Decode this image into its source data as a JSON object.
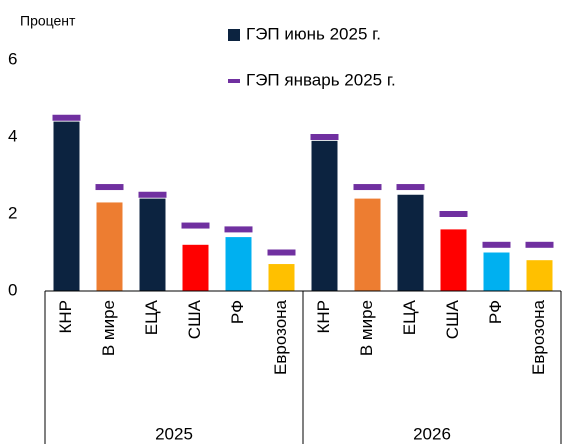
{
  "chart_data": {
    "type": "bar",
    "y_label": "Процент",
    "categories": [
      "КНР",
      "В мире",
      "ЕЦА",
      "США",
      "РФ",
      "Еврозона",
      "КНР",
      "В мире",
      "ЕЦА",
      "США",
      "РФ",
      "Еврозона"
    ],
    "groups": [
      {
        "label": "2025",
        "size": 6
      },
      {
        "label": "2026",
        "size": 6
      }
    ],
    "series": [
      {
        "name": "ГЭП июнь 2025 г.",
        "color": "#0c2340",
        "bar_colors": [
          "#0c2340",
          "#ed7d31",
          "#0c2340",
          "#ff0000",
          "#00b0f0",
          "#ffc000",
          "#0c2340",
          "#ed7d31",
          "#0c2340",
          "#ff0000",
          "#00b0f0",
          "#ffc000"
        ],
        "values": [
          4.4,
          2.3,
          2.4,
          1.2,
          1.4,
          0.7,
          3.9,
          2.4,
          2.5,
          1.6,
          1.0,
          0.8
        ]
      },
      {
        "name": "ГЭП январь 2025 г.",
        "color": "#7030a0",
        "marker": "dash",
        "values": [
          4.5,
          2.7,
          2.5,
          1.7,
          1.6,
          1.0,
          4.0,
          2.7,
          2.7,
          2.0,
          1.2,
          1.2
        ]
      }
    ],
    "ylim": [
      0,
      6
    ],
    "yticks": [
      0,
      2,
      4,
      6
    ],
    "grid": false
  }
}
